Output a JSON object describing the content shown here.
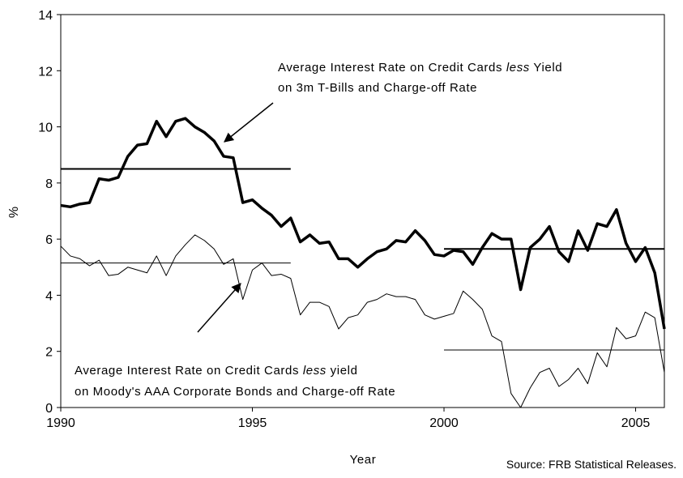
{
  "chart_data": {
    "type": "line",
    "x": [
      1990,
      1990.25,
      1990.5,
      1990.75,
      1991,
      1991.25,
      1991.5,
      1991.75,
      1992,
      1992.25,
      1992.5,
      1992.75,
      1993,
      1993.25,
      1993.5,
      1993.75,
      1994,
      1994.25,
      1994.5,
      1994.75,
      1995,
      1995.25,
      1995.5,
      1995.75,
      1996,
      1996.25,
      1996.5,
      1996.75,
      1997,
      1997.25,
      1997.5,
      1997.75,
      1998,
      1998.25,
      1998.5,
      1998.75,
      1999,
      1999.25,
      1999.5,
      1999.75,
      2000,
      2000.25,
      2000.5,
      2000.75,
      2001,
      2001.25,
      2001.5,
      2001.75,
      2002,
      2002.25,
      2002.5,
      2002.75,
      2003,
      2003.25,
      2003.5,
      2003.75,
      2004,
      2004.25,
      2004.5,
      2004.75,
      2005,
      2005.25,
      2005.5,
      2005.75
    ],
    "series": [
      {
        "color": "#000000",
        "width": 3.5,
        "values": [
          7.2,
          7.15,
          7.25,
          7.3,
          8.15,
          8.1,
          8.2,
          8.95,
          9.35,
          9.4,
          10.2,
          9.65,
          10.2,
          10.3,
          10.0,
          9.8,
          9.5,
          8.95,
          8.9,
          7.3,
          7.4,
          7.1,
          6.85,
          6.45,
          6.75,
          5.9,
          6.15,
          5.85,
          5.9,
          5.3,
          5.3,
          5.0,
          5.3,
          5.55,
          5.65,
          5.95,
          5.9,
          6.3,
          5.95,
          5.45,
          5.4,
          5.6,
          5.55,
          5.1,
          5.7,
          6.2,
          6.0,
          6.0,
          4.2,
          5.7,
          6.0,
          6.45,
          5.55,
          5.2,
          6.3,
          5.6,
          6.55,
          6.45,
          7.05,
          5.85,
          5.2,
          5.7,
          4.8,
          2.8
        ]
      },
      {
        "color": "#000000",
        "width": 1,
        "values": [
          5.75,
          5.4,
          5.3,
          5.05,
          5.25,
          4.7,
          4.75,
          5.0,
          4.9,
          4.8,
          5.4,
          4.7,
          5.4,
          5.8,
          6.15,
          5.95,
          5.65,
          5.1,
          5.3,
          3.85,
          4.9,
          5.15,
          4.7,
          4.75,
          4.6,
          3.3,
          3.75,
          3.75,
          3.6,
          2.8,
          3.2,
          3.3,
          3.75,
          3.85,
          4.05,
          3.95,
          3.95,
          3.85,
          3.3,
          3.15,
          3.25,
          3.35,
          4.15,
          3.85,
          3.5,
          2.55,
          2.35,
          0.5,
          0,
          0.7,
          1.25,
          1.4,
          0.75,
          1.0,
          1.4,
          0.85,
          1.95,
          1.45,
          2.85,
          2.45,
          2.55,
          3.4,
          3.2,
          1.25
        ]
      }
    ],
    "average_lines": [
      {
        "width": 2,
        "x": [
          1990,
          1996
        ],
        "values": [
          8.5,
          8.5
        ]
      },
      {
        "width": 2,
        "x": [
          2000,
          2005.75
        ],
        "values": [
          5.65,
          5.65
        ]
      },
      {
        "width": 1,
        "x": [
          1990,
          1996
        ],
        "values": [
          5.15,
          5.15
        ]
      },
      {
        "width": 1,
        "x": [
          2000,
          2005.75
        ],
        "values": [
          2.05,
          2.05
        ]
      }
    ],
    "annotations": [
      {
        "parts": [
          "Average Interest Rate on Credit Cards ",
          "less",
          " Yield"
        ],
        "line2": "on 3m T-Bills and Charge-off Rate"
      },
      {
        "parts": [
          "Average Interest Rate on Credit Cards ",
          "less",
          " yield"
        ],
        "line2": "on Moody's AAA Corporate Bonds and Charge-off Rate"
      }
    ],
    "xlabel": "Year",
    "ylabel": "%",
    "source": "Source: FRB Statistical Releases.",
    "xlim": [
      1990,
      2005.75
    ],
    "xticks": [
      1990,
      1995,
      2000,
      2005
    ],
    "ylim": [
      0,
      14
    ],
    "yticks": [
      0,
      2,
      4,
      6,
      8,
      10,
      12,
      14
    ],
    "grid": false
  }
}
